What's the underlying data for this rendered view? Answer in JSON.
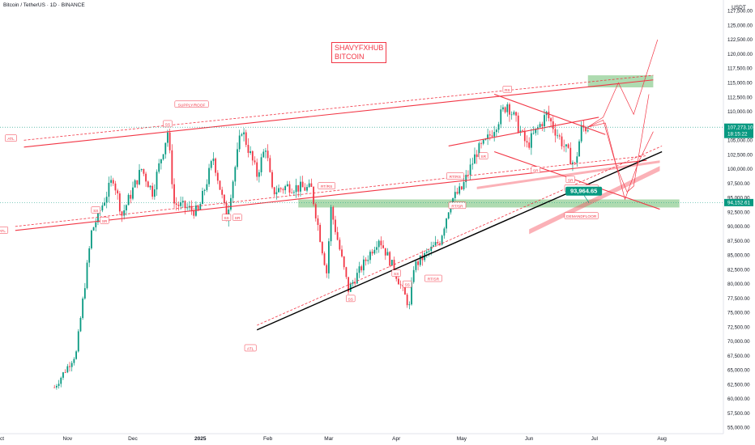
{
  "header": {
    "symbol": "Bitcoin / TetherUS · 1D · BINANCE"
  },
  "brand": {
    "line1": "SHAVYFXHUB",
    "line2": "BITCOIN"
  },
  "colors": {
    "up": "#089981",
    "down": "#f23645",
    "line_red": "#f23645",
    "trend_black": "#000000",
    "zone_green": "#4caf50",
    "zone_red": "#f7525f"
  },
  "chart_data": {
    "type": "candlestick",
    "currency": "USDT",
    "y_ticks": [
      55000,
      57500,
      60000,
      62500,
      65000,
      67500,
      70000,
      72500,
      75000,
      77500,
      80000,
      82500,
      85000,
      87500,
      90000,
      92500,
      95000,
      97500,
      100000,
      102500,
      105000,
      107500,
      110000,
      112500,
      115000,
      117500,
      120000,
      122500,
      125000,
      127500
    ],
    "y_tick_labels": [
      "55,000.00",
      "57,500.00",
      "60,000.00",
      "62,500.00",
      "65,000.00",
      "67,500.00",
      "70,000.00",
      "72,500.00",
      "75,000.00",
      "77,500.00",
      "80,000.00",
      "82,500.00",
      "85,000.00",
      "87,500.00",
      "90,000.00",
      "92,500.00",
      "95,000.00",
      "97,500.00",
      "100,000.00",
      "102,500.00",
      "105,000.00",
      "107,500.00",
      "110,000.00",
      "112,500.00",
      "115,000.00",
      "117,500.00",
      "120,000.00",
      "122,500.00",
      "125,000.00",
      "127,500.00"
    ],
    "ylim": [
      54000,
      129000
    ],
    "x_labels": [
      {
        "label": "Oct",
        "date": "2024-10-01"
      },
      {
        "label": "Nov",
        "date": "2024-11-01"
      },
      {
        "label": "Dec",
        "date": "2024-12-01"
      },
      {
        "label": "2025",
        "date": "2025-01-01"
      },
      {
        "label": "Feb",
        "date": "2025-02-01"
      },
      {
        "label": "Mar",
        "date": "2025-03-01"
      },
      {
        "label": "Apr",
        "date": "2025-04-01"
      },
      {
        "label": "May",
        "date": "2025-05-01"
      },
      {
        "label": "Jun",
        "date": "2025-06-01"
      },
      {
        "label": "Jul",
        "date": "2025-07-01"
      },
      {
        "label": "Aug",
        "date": "2025-08-01"
      }
    ],
    "price_markers": [
      {
        "label": "107,273.10",
        "sub": "18:15:22",
        "value": 107273.1,
        "color": "#089981"
      },
      {
        "label": "94,152.61",
        "value": 94152.61,
        "color": "#089981"
      }
    ],
    "callout": {
      "label": "93,964.65",
      "value": 93964.65,
      "date": "2025-06-30"
    },
    "path": [
      {
        "d": "2024-10-26",
        "p": 62000
      },
      {
        "d": "2024-11-05",
        "p": 68000
      },
      {
        "d": "2024-11-12",
        "p": 89000
      },
      {
        "d": "2024-11-22",
        "p": 98500
      },
      {
        "d": "2024-11-26",
        "p": 92000
      },
      {
        "d": "2024-12-05",
        "p": 100000
      },
      {
        "d": "2024-12-10",
        "p": 96000
      },
      {
        "d": "2024-12-17",
        "p": 106500
      },
      {
        "d": "2024-12-20",
        "p": 94000
      },
      {
        "d": "2024-12-31",
        "p": 92500
      },
      {
        "d": "2025-01-07",
        "p": 102000
      },
      {
        "d": "2025-01-13",
        "p": 91500
      },
      {
        "d": "2025-01-20",
        "p": 107000
      },
      {
        "d": "2025-01-27",
        "p": 99000
      },
      {
        "d": "2025-01-31",
        "p": 104000
      },
      {
        "d": "2025-02-03",
        "p": 96000
      },
      {
        "d": "2025-02-10",
        "p": 97000
      },
      {
        "d": "2025-02-21",
        "p": 96500
      },
      {
        "d": "2025-02-26",
        "p": 86000
      },
      {
        "d": "2025-02-28",
        "p": 82000
      },
      {
        "d": "2025-03-02",
        "p": 93000
      },
      {
        "d": "2025-03-10",
        "p": 79000
      },
      {
        "d": "2025-03-24",
        "p": 88000
      },
      {
        "d": "2025-03-31",
        "p": 82500
      },
      {
        "d": "2025-04-07",
        "p": 76000
      },
      {
        "d": "2025-04-09",
        "p": 83000
      },
      {
        "d": "2025-04-21",
        "p": 87500
      },
      {
        "d": "2025-04-26",
        "p": 94500
      },
      {
        "d": "2025-05-01",
        "p": 96500
      },
      {
        "d": "2025-05-08",
        "p": 103000
      },
      {
        "d": "2025-05-12",
        "p": 104500
      },
      {
        "d": "2025-05-22",
        "p": 111500
      },
      {
        "d": "2025-05-31",
        "p": 104000
      },
      {
        "d": "2025-06-09",
        "p": 109500
      },
      {
        "d": "2025-06-17",
        "p": 104000
      },
      {
        "d": "2025-06-22",
        "p": 100500
      },
      {
        "d": "2025-06-25",
        "p": 107000
      },
      {
        "d": "2025-06-28",
        "p": 107273
      }
    ],
    "trendlines": [
      {
        "name": "upper-channel",
        "color": "#f23645",
        "points": [
          {
            "d": "2024-10-12",
            "p": 103800
          },
          {
            "d": "2025-07-28",
            "p": 115500
          }
        ]
      },
      {
        "name": "lower-channel",
        "color": "#f23645",
        "points": [
          {
            "d": "2024-10-08",
            "p": 89300
          },
          {
            "d": "2025-07-25",
            "p": 101500
          }
        ]
      },
      {
        "name": "main-trend",
        "color": "#000000",
        "points": [
          {
            "d": "2025-01-27",
            "p": 72000
          },
          {
            "d": "2025-08-01",
            "p": 103000
          }
        ]
      },
      {
        "name": "wedge-top",
        "color": "#f23645",
        "points": [
          {
            "d": "2025-05-16",
            "p": 113000
          },
          {
            "d": "2025-07-06",
            "p": 106000
          }
        ]
      },
      {
        "name": "wedge-mid",
        "color": "#f23645",
        "points": [
          {
            "d": "2025-04-25",
            "p": 104000
          },
          {
            "d": "2025-07-03",
            "p": 109000
          }
        ]
      },
      {
        "name": "wedge-low",
        "color": "#f23645",
        "points": [
          {
            "d": "2025-05-16",
            "p": 103000
          },
          {
            "d": "2025-07-31",
            "p": 93000
          }
        ]
      }
    ],
    "zones": [
      {
        "name": "demand-green",
        "color": "#4caf50",
        "d1": "2025-02-15",
        "d2": "2025-08-09",
        "p1": 93300,
        "p2": 94700
      },
      {
        "name": "target-green",
        "color": "#4caf50",
        "d1": "2025-06-28",
        "d2": "2025-07-28",
        "p1": 114200,
        "p2": 116300
      }
    ],
    "labels": [
      {
        "text": "ATL",
        "d": "2024-10-06",
        "p": 105300
      },
      {
        "text": "ATL",
        "d": "2024-10-02",
        "p": 89300
      },
      {
        "text": "SUPPLY/ROOF",
        "d": "2024-12-28",
        "p": 111200
      },
      {
        "text": "SS",
        "d": "2024-12-17",
        "p": 107800
      },
      {
        "text": "SS",
        "d": "2024-11-14",
        "p": 92800
      },
      {
        "text": "SR",
        "d": "2024-11-18",
        "p": 91000
      },
      {
        "text": "SS",
        "d": "2025-01-13",
        "p": 91500
      },
      {
        "text": "SR",
        "d": "2025-01-18",
        "p": 91500
      },
      {
        "text": "ATL",
        "d": "2025-01-24",
        "p": 68800
      },
      {
        "text": "RT/RS",
        "d": "2025-02-28",
        "p": 97000
      },
      {
        "text": "SS",
        "d": "2025-03-11",
        "p": 77400
      },
      {
        "text": "SS",
        "d": "2025-04-01",
        "p": 81800
      },
      {
        "text": "SS",
        "d": "2025-04-06",
        "p": 79900
      },
      {
        "text": "RT/SR",
        "d": "2025-04-18",
        "p": 80900
      },
      {
        "text": "RT/RS",
        "d": "2025-04-28",
        "p": 98700
      },
      {
        "text": "RT/SR",
        "d": "2025-04-29",
        "p": 93600
      },
      {
        "text": "RS",
        "d": "2025-05-22",
        "p": 113800
      },
      {
        "text": "SR",
        "d": "2025-05-11",
        "p": 102200
      },
      {
        "text": "SR",
        "d": "2025-06-04",
        "p": 99800
      },
      {
        "text": "SR",
        "d": "2025-06-20",
        "p": 98100
      },
      {
        "text": "DEMANDFLOOR",
        "d": "2025-06-25",
        "p": 96600
      },
      {
        "text": "DEMANDFLOOR",
        "d": "2025-06-25",
        "p": 91800
      }
    ]
  }
}
